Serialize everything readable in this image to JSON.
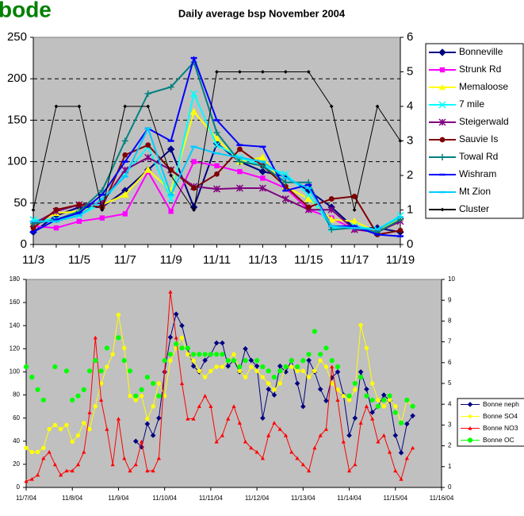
{
  "heading_fragment": "bode",
  "chart_data": [
    {
      "type": "line",
      "title": "Daily average bsp November 2004",
      "categories": [
        "11/3",
        null,
        "11/5",
        null,
        "11/7",
        null,
        "11/9",
        null,
        "11/11",
        null,
        "11/13",
        null,
        "11/15",
        null,
        "11/17",
        null,
        "11/19"
      ],
      "ylim": [
        0,
        250
      ],
      "yticks": [
        0,
        50,
        100,
        150,
        200,
        250
      ],
      "y2lim": [
        0,
        6
      ],
      "y2ticks": [
        0,
        1,
        2,
        3,
        4,
        5,
        6
      ],
      "grid": true,
      "grid_style": "dashed",
      "background": "#c0c0c0",
      "legend": "right",
      "series": [
        {
          "name": "Bonneville",
          "color": "#000080",
          "marker": "diamond",
          "values": [
            15,
            35,
            45,
            45,
            65,
            90,
            115,
            45,
            122,
            100,
            88,
            82,
            65,
            45,
            20,
            20,
            15
          ]
        },
        {
          "name": "Strunk Rd",
          "color": "#ff00ff",
          "marker": "square",
          "values": [
            22,
            20,
            28,
            32,
            37,
            88,
            40,
            100,
            95,
            88,
            80,
            68,
            42,
            32,
            18,
            15,
            30
          ]
        },
        {
          "name": "Memaloose",
          "color": "#ffff00",
          "marker": "triangle",
          "values": [
            25,
            38,
            40,
            48,
            60,
            90,
            65,
            160,
            128,
            100,
            105,
            70,
            55,
            30,
            28,
            15,
            32
          ]
        },
        {
          "name": "7 mile",
          "color": "#00ffff",
          "marker": "x",
          "values": [
            30,
            30,
            35,
            50,
            85,
            118,
            55,
            182,
            120,
            105,
            95,
            85,
            60,
            20,
            22,
            18,
            35
          ]
        },
        {
          "name": "Steigerwald",
          "color": "#800080",
          "marker": "star",
          "values": [
            25,
            40,
            48,
            50,
            90,
            105,
            90,
            70,
            67,
            68,
            68,
            55,
            42,
            42,
            18,
            15,
            28
          ]
        },
        {
          "name": "Sauvie Is",
          "color": "#800000",
          "marker": "circle",
          "values": [
            20,
            42,
            48,
            45,
            108,
            120,
            90,
            68,
            85,
            115,
            95,
            70,
            45,
            55,
            58,
            12,
            17
          ]
        },
        {
          "name": "Towal Rd",
          "color": "#008080",
          "marker": "plus",
          "values": [
            25,
            30,
            40,
            65,
            125,
            182,
            190,
            220,
            135,
            100,
            95,
            75,
            75,
            18,
            20,
            15,
            30
          ]
        },
        {
          "name": "Wishram",
          "color": "#0000ff",
          "marker": "dash",
          "values": [
            15,
            30,
            38,
            60,
            100,
            140,
            125,
            225,
            150,
            120,
            118,
            65,
            72,
            22,
            22,
            12,
            10
          ]
        },
        {
          "name": "Mt Zion",
          "color": "#00ccff",
          "marker": "dash",
          "values": [
            28,
            28,
            35,
            55,
            82,
            140,
            60,
            118,
            110,
            105,
            100,
            80,
            68,
            22,
            20,
            18,
            33
          ]
        },
        {
          "name": "Cluster",
          "color": "#000000",
          "marker": "dot",
          "axis": "y2",
          "values": [
            1,
            4,
            4,
            1,
            4,
            4,
            2,
            1,
            5,
            5,
            5,
            5,
            5,
            4,
            1,
            4,
            3
          ]
        }
      ]
    },
    {
      "type": "line",
      "x": [
        7,
        7.125,
        7.25,
        7.375,
        7.5,
        7.625,
        7.75,
        7.875,
        8,
        8.125,
        8.25,
        8.375,
        8.5,
        8.625,
        8.75,
        8.875,
        9,
        9.125,
        9.25,
        9.375,
        9.5,
        9.625,
        9.75,
        9.875,
        10,
        10.125,
        10.25,
        10.375,
        10.5,
        10.625,
        10.75,
        10.875,
        11,
        11.125,
        11.25,
        11.375,
        11.5,
        11.625,
        11.75,
        11.875,
        12,
        12.125,
        12.25,
        12.375,
        12.5,
        12.625,
        12.75,
        12.875,
        13,
        13.125,
        13.25,
        13.375,
        13.5,
        13.625,
        13.75,
        13.875,
        14,
        14.125,
        14.25,
        14.375,
        14.5,
        14.625,
        14.75,
        14.875,
        15,
        15.125,
        15.25,
        15.375
      ],
      "xlim": [
        7,
        16
      ],
      "xticks": [
        {
          "value": 7,
          "label": "11/7/04"
        },
        {
          "value": 8,
          "label": "11/8/04"
        },
        {
          "value": 9,
          "label": "11/9/04"
        },
        {
          "value": 10,
          "label": "11/10/04"
        },
        {
          "value": 11,
          "label": "11/11/04"
        },
        {
          "value": 12,
          "label": "11/12/04"
        },
        {
          "value": 13,
          "label": "11/13/04"
        },
        {
          "value": 14,
          "label": "11/14/04"
        },
        {
          "value": 15,
          "label": "11/15/04"
        },
        {
          "value": 16,
          "label": "11/16/04"
        }
      ],
      "ylim": [
        0,
        180
      ],
      "yticks": [
        0,
        20,
        40,
        60,
        80,
        100,
        120,
        140,
        160,
        180
      ],
      "y2lim": [
        0,
        10
      ],
      "y2ticks": [
        0,
        1,
        2,
        3,
        4,
        5,
        6,
        7,
        8,
        9,
        10
      ],
      "grid": false,
      "background": "#c0c0c0",
      "legend": "right",
      "series": [
        {
          "name": "Bonne neph",
          "color": "#000080",
          "marker": "diamond",
          "line": true,
          "values": [
            null,
            null,
            null,
            null,
            null,
            null,
            null,
            null,
            null,
            null,
            null,
            null,
            null,
            null,
            null,
            null,
            null,
            null,
            null,
            40,
            35,
            55,
            45,
            60,
            100,
            130,
            150,
            140,
            120,
            105,
            100,
            110,
            115,
            125,
            125,
            105,
            110,
            100,
            120,
            110,
            105,
            60,
            85,
            80,
            105,
            100,
            110,
            90,
            70,
            110,
            100,
            85,
            75,
            95,
            100,
            80,
            45,
            60,
            100,
            85,
            65,
            70,
            80,
            75,
            45,
            30,
            55,
            62
          ]
        },
        {
          "name": "Bonne SO4",
          "color": "#ffff00",
          "marker": "circle",
          "line": true,
          "axis": "y2",
          "values": [
            1.9,
            1.7,
            1.7,
            1.9,
            2.8,
            3.0,
            2.8,
            3.0,
            2.2,
            2.5,
            3.1,
            2.8,
            3.9,
            5.0,
            5.8,
            6.4,
            8.3,
            6.7,
            4.4,
            4.2,
            4.4,
            3.3,
            3.9,
            5.0,
            4.4,
            6.1,
            6.7,
            7.2,
            6.4,
            6.1,
            5.6,
            5.3,
            5.6,
            5.8,
            5.8,
            6.1,
            6.4,
            5.6,
            5.3,
            5.8,
            5.6,
            5.3,
            5.0,
            4.7,
            5.0,
            5.8,
            5.8,
            5.6,
            5.6,
            5.3,
            5.6,
            6.1,
            5.8,
            5.0,
            4.7,
            4.4,
            4.2,
            4.7,
            7.8,
            6.7,
            5.0,
            4.2,
            3.9,
            4.2,
            3.9,
            3.1,
            4.2,
            3.9
          ]
        },
        {
          "name": "Bonne NO3",
          "color": "#ff0000",
          "marker": "triangle",
          "line": true,
          "axis": "y2",
          "values": [
            0.3,
            0.4,
            0.6,
            1.4,
            1.7,
            1.1,
            0.6,
            0.8,
            0.8,
            1.1,
            1.7,
            3.6,
            7.2,
            4.2,
            2.8,
            1.1,
            3.3,
            1.4,
            0.8,
            1.1,
            2.2,
            0.8,
            0.8,
            1.4,
            5.6,
            9.4,
            7.2,
            5.0,
            3.3,
            3.3,
            3.9,
            4.4,
            3.9,
            2.2,
            2.5,
            3.3,
            3.9,
            3.1,
            2.2,
            1.9,
            1.7,
            1.4,
            2.5,
            3.1,
            2.8,
            2.5,
            1.7,
            1.4,
            1.1,
            0.8,
            1.9,
            2.5,
            2.8,
            5.8,
            4.2,
            2.2,
            0.8,
            1.1,
            3.1,
            3.9,
            3.3,
            2.2,
            2.5,
            1.7,
            0.8,
            0.4,
            1.4,
            1.9
          ]
        },
        {
          "name": "Bonne OC",
          "color": "#00ff00",
          "marker": "bigcircle",
          "line": false,
          "axis": "y2",
          "values": [
            5.8,
            5.3,
            4.7,
            4.2,
            null,
            5.8,
            null,
            5.6,
            4.2,
            4.4,
            4.7,
            5.6,
            6.1,
            5.6,
            6.7,
            null,
            7.2,
            6.1,
            5.6,
            4.4,
            4.7,
            5.3,
            5.0,
            4.4,
            6.1,
            6.4,
            6.9,
            6.7,
            6.7,
            6.4,
            6.4,
            6.4,
            6.4,
            6.4,
            6.4,
            6.1,
            6.1,
            5.8,
            6.1,
            null,
            6.1,
            5.8,
            5.6,
            5.3,
            5.6,
            5.8,
            6.1,
            5.8,
            6.1,
            6.4,
            7.5,
            6.4,
            6.7,
            6.1,
            5.8,
            null,
            4.4,
            5.0,
            5.3,
            4.4,
            4.2,
            3.9,
            4.2,
            4.4,
            3.6,
            3.1,
            4.2,
            3.9
          ]
        }
      ]
    }
  ]
}
